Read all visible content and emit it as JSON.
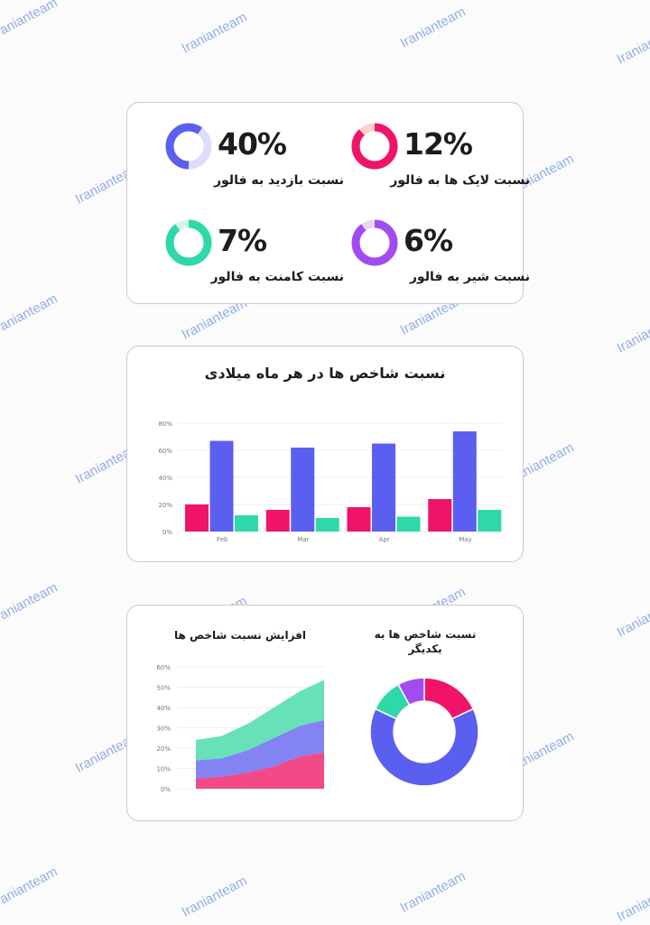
{
  "watermark": "Iranianteam",
  "stats": [
    {
      "value": "40%",
      "fraction": 0.4,
      "label": "نسبت بازدید به فالور",
      "color": "#5b5ff0",
      "track": "#dcdcfb"
    },
    {
      "value": "12%",
      "fraction": 0.12,
      "label": "نسبت لایک ها به فالور",
      "color": "#f0136a",
      "track": "#f9d6c5"
    },
    {
      "value": "7%",
      "fraction": 0.07,
      "label": "نسبت کامنت به فالور",
      "color": "#2fd8a8",
      "track": "#d4f6ea"
    },
    {
      "value": "6%",
      "fraction": 0.06,
      "label": "نسبت شیر به فالور",
      "color": "#a24cf0",
      "track": "#ead6fb"
    }
  ],
  "colors": {
    "pink": "#f0136a",
    "blue": "#5b5ff0",
    "green": "#2fd8a8",
    "purple": "#a24cf0"
  },
  "chart_data": [
    {
      "type": "bar",
      "title": "نسبت شاخص ها در هر ماه میلادی",
      "categories": [
        "Feb",
        "Mar",
        "Apr",
        "May"
      ],
      "series": [
        {
          "values": [
            20,
            16,
            18,
            24
          ],
          "color": "#f0136a"
        },
        {
          "values": [
            67,
            62,
            65,
            74
          ],
          "color": "#5b5ff0"
        },
        {
          "values": [
            12,
            10,
            11,
            16
          ],
          "color": "#2fd8a8"
        }
      ],
      "yticks": [
        "0%",
        "20%",
        "40%",
        "60%",
        "80%"
      ],
      "ylim": [
        0,
        80
      ],
      "grid": true
    },
    {
      "type": "area",
      "title": "افزایش نسبت شاخص ها",
      "x": [
        0,
        1,
        2,
        3,
        4,
        5
      ],
      "series": [
        {
          "values": [
            5,
            6,
            8,
            11,
            16,
            18
          ],
          "color": "#f0407f"
        },
        {
          "values": [
            9,
            9,
            11,
            14,
            15,
            16
          ],
          "color": "#7c7cf3"
        },
        {
          "values": [
            10,
            11,
            13,
            15,
            17,
            20
          ],
          "color": "#5fdfb4"
        }
      ],
      "stacked": true,
      "yticks": [
        "0%",
        "10%",
        "20%",
        "30%",
        "40%",
        "50%",
        "60%"
      ],
      "ylim": [
        0,
        60
      ],
      "grid": true
    },
    {
      "type": "pie",
      "title_lines": [
        "نسبت شاخص ها به",
        "یکدیگر"
      ],
      "slices": [
        {
          "value": 18,
          "color": "#f0136a"
        },
        {
          "value": 64,
          "color": "#5b5ff0"
        },
        {
          "value": 10,
          "color": "#2fd8a8"
        },
        {
          "value": 8,
          "color": "#a24cf0"
        }
      ],
      "donut": true
    }
  ]
}
